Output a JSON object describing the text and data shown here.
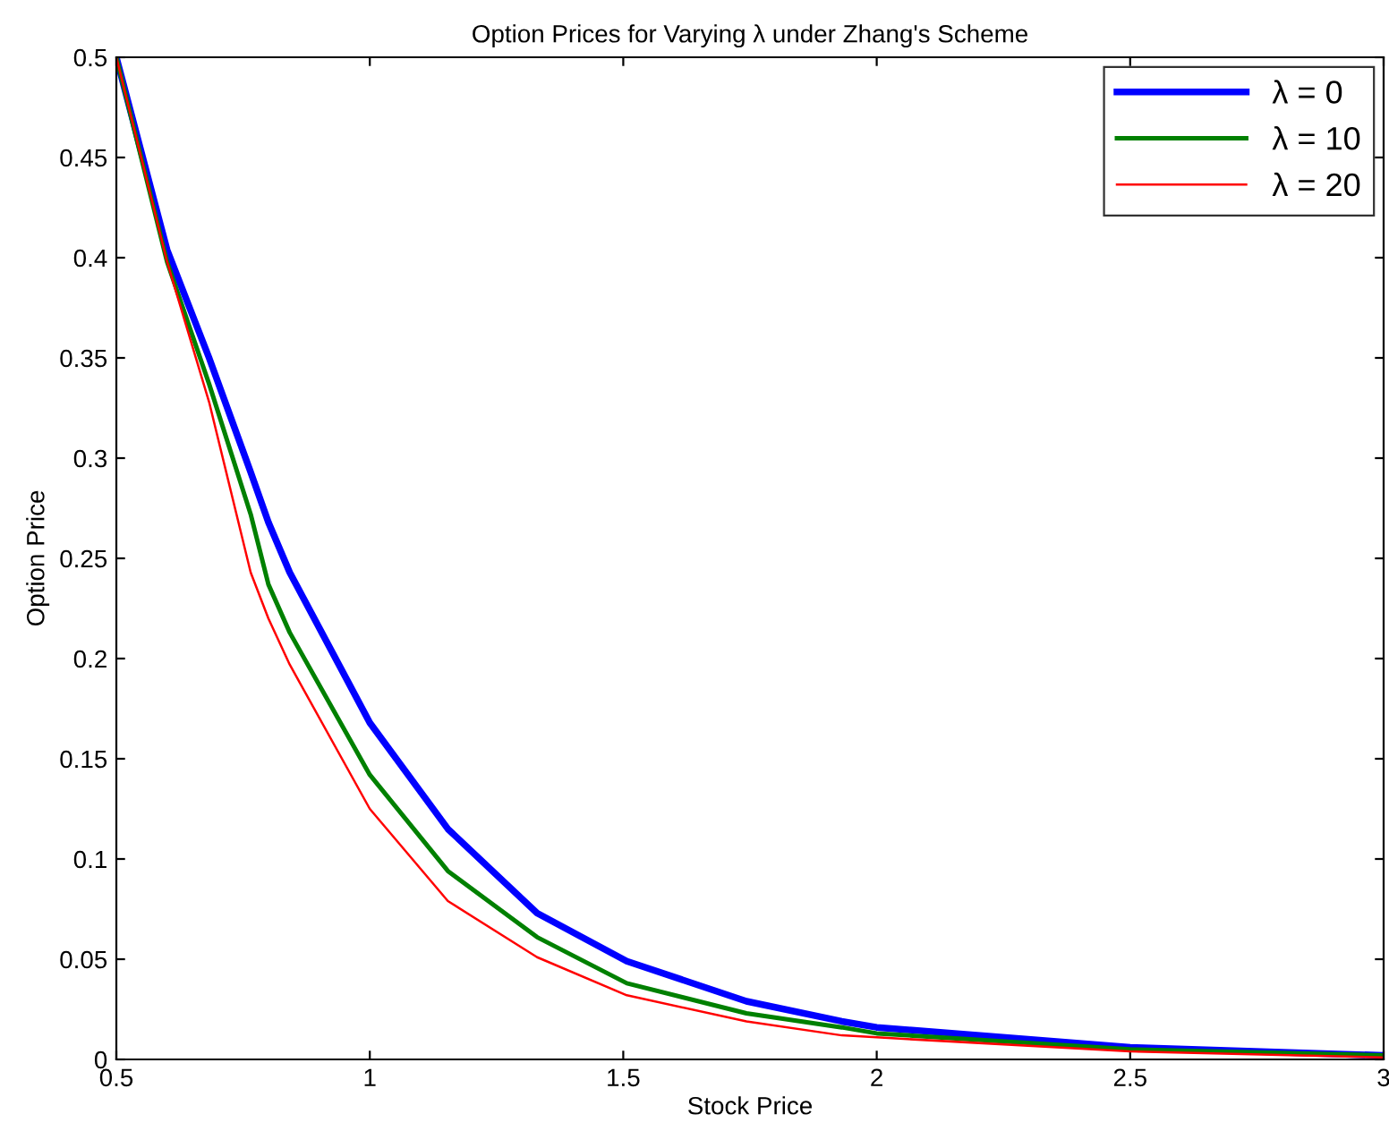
{
  "chart_data": {
    "type": "line",
    "title": "Option Prices for Varying λ under Zhang's Scheme",
    "xlabel": "Stock Price",
    "ylabel": "Option Price",
    "x": [
      0.5,
      0.6,
      0.683,
      0.765,
      0.8,
      0.842,
      1.0,
      1.154,
      1.33,
      1.507,
      1.743,
      1.931,
      2.0,
      2.5,
      3.0
    ],
    "series": [
      {
        "name": "λ = 0",
        "color": "#0000ff",
        "values": [
          0.5,
          0.404,
          0.35,
          0.293,
          0.268,
          0.243,
          0.168,
          0.115,
          0.073,
          0.049,
          0.029,
          0.019,
          0.016,
          0.006,
          0.002
        ]
      },
      {
        "name": "λ = 10",
        "color": "#008000",
        "values": [
          0.5,
          0.398,
          0.337,
          0.272,
          0.237,
          0.213,
          0.142,
          0.094,
          0.061,
          0.038,
          0.023,
          0.016,
          0.013,
          0.005,
          0.002
        ]
      },
      {
        "name": "λ = 20",
        "color": "#ff0000",
        "values": [
          0.5,
          0.398,
          0.328,
          0.243,
          0.22,
          0.197,
          0.125,
          0.079,
          0.051,
          0.032,
          0.019,
          0.012,
          0.011,
          0.004,
          0.001
        ]
      }
    ],
    "xlim": [
      0.5,
      3
    ],
    "ylim": [
      0,
      0.5
    ],
    "xticks": [
      0.5,
      1,
      1.5,
      2,
      2.5,
      3
    ],
    "yticks": [
      0,
      0.05,
      0.1,
      0.15,
      0.2,
      0.25,
      0.3,
      0.35,
      0.4,
      0.45,
      0.5
    ],
    "grid": false,
    "legend": "top right",
    "marker": "none",
    "line_style": "solid"
  }
}
